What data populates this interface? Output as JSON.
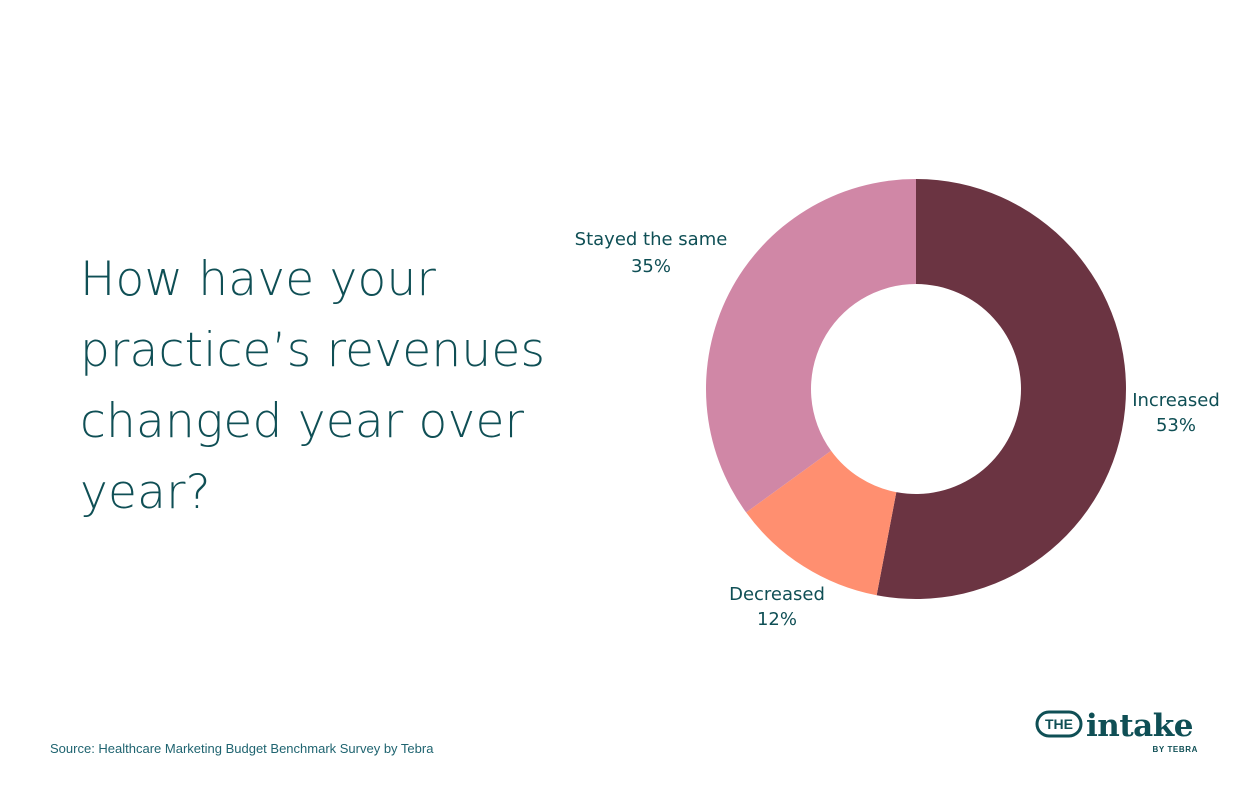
{
  "title": "How have your practice’s revenues changed year over year?",
  "source": "Source: Healthcare Marketing Budget Benchmark Survey by Tebra",
  "logo": {
    "the": "THE",
    "name": "intake",
    "byline": "BY TEBRA",
    "color": "#0f4f55"
  },
  "chart_data": {
    "type": "pie",
    "donut": true,
    "slices": [
      {
        "label": "Increased",
        "value": 53,
        "display": "53%",
        "color": "#6b3442"
      },
      {
        "label": "Decreased",
        "value": 12,
        "display": "12%",
        "color": "#ff8f70"
      },
      {
        "label": "Stayed the same",
        "value": 35,
        "display": "35%",
        "color": "#d087a6"
      }
    ]
  }
}
